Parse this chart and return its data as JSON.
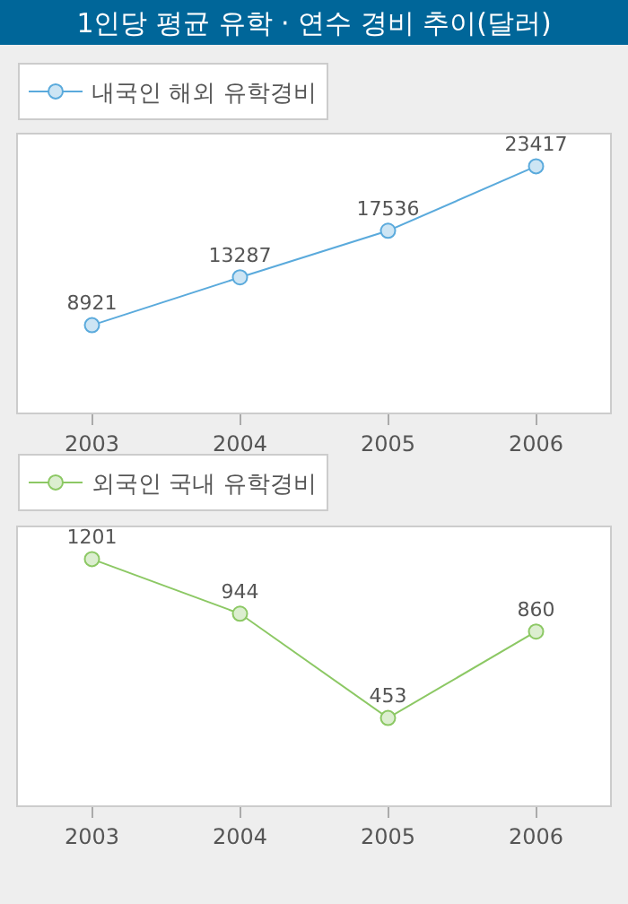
{
  "chart_data": [
    {
      "type": "line",
      "title": "1인당 평균 유학 · 연수 경비 추이(달러)",
      "categories": [
        "2003",
        "2004",
        "2005",
        "2006"
      ],
      "series": [
        {
          "name": "내국인 해외 유학경비",
          "color": "#5aaadc",
          "values": [
            8921,
            13287,
            17536,
            23417
          ]
        }
      ],
      "data_labels": true,
      "tick_labels": "x",
      "marker": "circle",
      "line_style": "solid",
      "legend": "top left"
    },
    {
      "type": "line",
      "categories": [
        "2003",
        "2004",
        "2005",
        "2006"
      ],
      "series": [
        {
          "name": "외국인 국내 유학경비",
          "color": "#8cc864",
          "values": [
            1201,
            944,
            453,
            860
          ]
        }
      ],
      "data_labels": true,
      "tick_labels": "x",
      "marker": "circle",
      "line_style": "solid",
      "legend": "top left"
    }
  ]
}
